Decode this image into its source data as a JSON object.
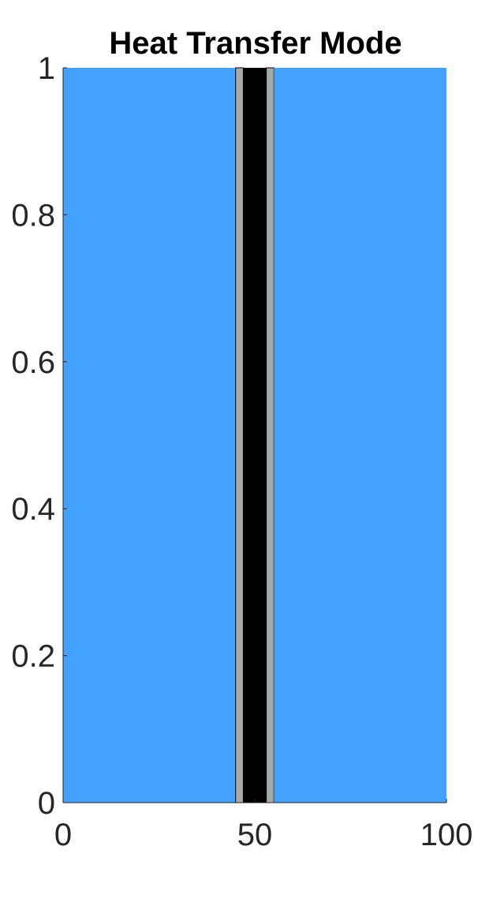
{
  "chart_data": {
    "type": "heatmap",
    "title": "Heat Transfer Mode",
    "xlabel": "",
    "ylabel": "",
    "xlim": [
      0,
      100
    ],
    "ylim": [
      0,
      1
    ],
    "xticks": [
      0,
      50,
      100
    ],
    "xtick_labels": [
      "0",
      "50",
      "100"
    ],
    "yticks": [
      0,
      0.2,
      0.4,
      0.6,
      0.8,
      1
    ],
    "ytick_labels": [
      "0",
      "0.2",
      "0.4",
      "0.6",
      "0.8",
      "1"
    ],
    "grid": false,
    "regions": [
      {
        "x_start": 0,
        "x_end": 45,
        "color": "#42a2fd"
      },
      {
        "x_start": 45,
        "x_end": 47,
        "color": "#a8a8a8"
      },
      {
        "x_start": 47,
        "x_end": 53,
        "color": "#000000"
      },
      {
        "x_start": 53,
        "x_end": 55,
        "color": "#a8a8a8"
      },
      {
        "x_start": 55,
        "x_end": 100,
        "color": "#42a2fd"
      }
    ],
    "colors": {
      "axis": "#262626",
      "title": "#000000"
    }
  }
}
